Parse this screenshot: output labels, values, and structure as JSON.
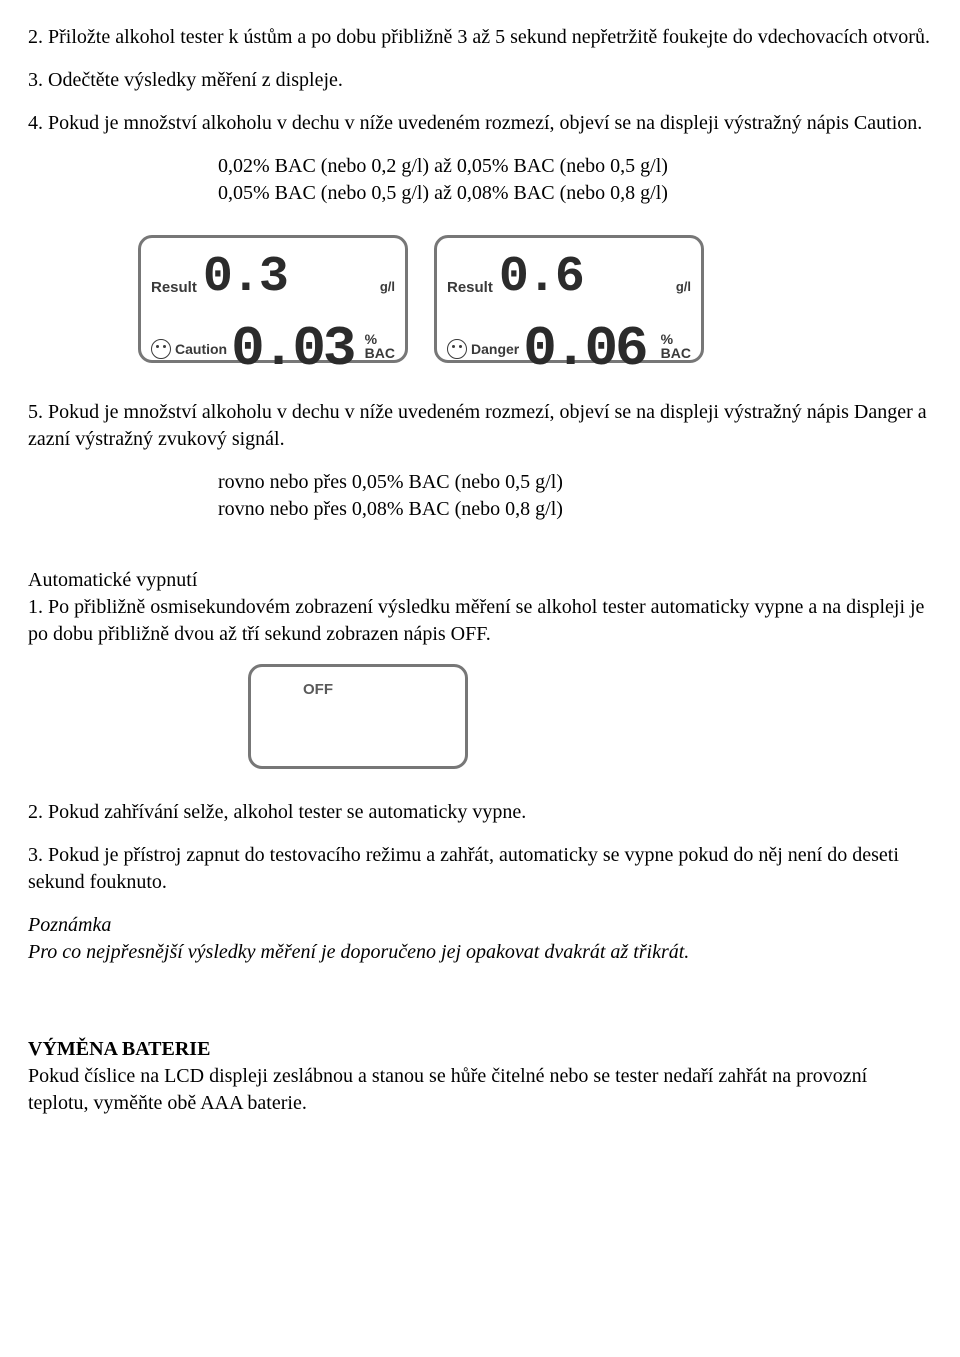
{
  "para": {
    "p2": "2. Přiložte alkohol tester k ústům a po dobu přibližně 3 až 5 sekund nepřetržitě foukejte do vdechovacích otvorů.",
    "p3": "3. Odečtěte výsledky měření z displeje.",
    "p4": "4. Pokud je množství alkoholu v dechu v níže uvedeném rozmezí, objeví se na displeji výstražný nápis Caution.",
    "range1_l1": "0,02% BAC (nebo 0,2 g/l) až 0,05% BAC (nebo 0,5 g/l)",
    "range1_l2": "0,05% BAC (nebo 0,5 g/l) až 0,08% BAC (nebo 0,8 g/l)",
    "p5": "5. Pokud je množství alkoholu v dechu v níže uvedeném rozmezí, objeví se na displeji výstražný nápis Danger a zazní výstražný zvukový signál.",
    "range2_l1": "rovno nebo přes 0,05% BAC (nebo 0,5 g/l)",
    "range2_l2": "rovno nebo přes 0,08% BAC (nebo 0,8 g/l)",
    "auto_title": "Automatické vypnutí",
    "auto1": "1. Po přibližně osmisekundovém zobrazení výsledku měření se alkohol tester automaticky vypne a na displeji je po dobu přibližně dvou až tří sekund zobrazen nápis OFF.",
    "auto2": "2. Pokud zahřívání selže, alkohol tester se automaticky vypne.",
    "auto3": "3. Pokud je přístroj zapnut do testovacího režimu a zahřát, automaticky se vypne pokud do něj není do deseti sekund fouknuto.",
    "note_title": "Poznámka",
    "note_body": "Pro co nejpřesnější výsledky měření je doporučeno jej opakovat dvakrát až třikrát.",
    "battery_title": "VÝMĚNA BATERIE",
    "battery_body": "Pokud číslice na LCD displeji zeslábnou a stanou se hůře čitelné nebo se tester nedaří zahřát na provozní teplotu, vyměňte obě AAA baterie."
  },
  "lcd": {
    "result_label": "Result",
    "unit_gl": "g/l",
    "unit_pct": "%",
    "unit_bac": "BAC",
    "off_label": "OFF",
    "d1": {
      "value_top": "0.3",
      "warn_label": "Caution",
      "value_bottom": "0.03"
    },
    "d2": {
      "value_top": "0.6",
      "warn_label": "Danger",
      "value_bottom": "0.06"
    }
  }
}
